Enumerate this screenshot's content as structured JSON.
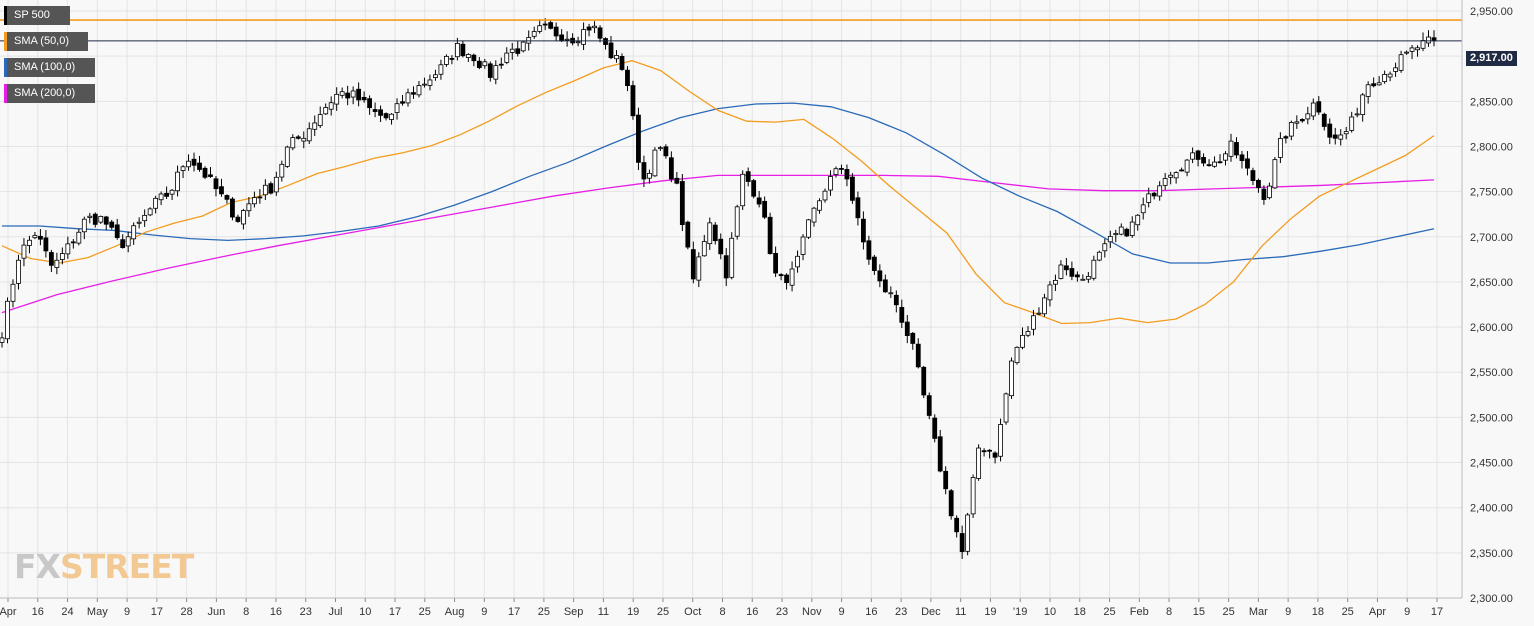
{
  "colors": {
    "background": "#f8f8f8",
    "grid": "#e4e4e4",
    "candle": "#000000",
    "sma50": "#f39c1f",
    "sma100": "#2a6ab8",
    "sma200": "#e61ee6",
    "resistance": "#f39c1f",
    "current_line": "#1f2a44"
  },
  "legend": [
    {
      "label": "SP 500",
      "color": "#000000"
    },
    {
      "label": "SMA (50,0)",
      "color": "#f39c1f"
    },
    {
      "label": "SMA (100,0)",
      "color": "#2a6ab8"
    },
    {
      "label": "SMA (200,0)",
      "color": "#e61ee6"
    }
  ],
  "price_tag": "2,917.00",
  "watermark": {
    "fx": "FX",
    "rest": "STREET"
  },
  "chart_data": {
    "type": "candlestick",
    "title": "SP 500",
    "xlabel": "",
    "ylabel": "",
    "ylim": [
      2300,
      2960
    ],
    "grid": true,
    "y_ticks": [
      2300,
      2350,
      2400,
      2450,
      2500,
      2550,
      2600,
      2650,
      2700,
      2750,
      2800,
      2850,
      2900,
      2950
    ],
    "y_tick_labels": [
      "2,300.00",
      "2,350.00",
      "2,400.00",
      "2,450.00",
      "2,500.00",
      "2,550.00",
      "2,600.00",
      "2,650.00",
      "2,700.00",
      "2,750.00",
      "2,800.00",
      "2,850.00",
      "2,900.00",
      "2,950.00"
    ],
    "x_ticks": [
      "Apr",
      "16",
      "24",
      "May",
      "9",
      "17",
      "28",
      "Jun",
      "8",
      "16",
      "23",
      "Jul",
      "10",
      "17",
      "25",
      "Aug",
      "9",
      "17",
      "25",
      "Sep",
      "11",
      "19",
      "25",
      "Oct",
      "8",
      "16",
      "23",
      "Nov",
      "9",
      "16",
      "23",
      "Dec",
      "11",
      "19",
      "'19",
      "10",
      "18",
      "25",
      "Feb",
      "8",
      "15",
      "25",
      "Mar",
      "9",
      "18",
      "25",
      "Apr",
      "9",
      "17"
    ],
    "resistance": 2940,
    "current_price": 2917,
    "price_keypoints": [
      2595,
      2680,
      2705,
      2665,
      2690,
      2720,
      2720,
      2690,
      2710,
      2735,
      2750,
      2790,
      2770,
      2745,
      2720,
      2745,
      2755,
      2800,
      2815,
      2840,
      2860,
      2855,
      2838,
      2830,
      2855,
      2870,
      2885,
      2910,
      2900,
      2880,
      2905,
      2910,
      2930,
      2925,
      2920,
      2935,
      2905,
      2885,
      2760,
      2800,
      2760,
      2650,
      2720,
      2660,
      2770,
      2740,
      2650,
      2660,
      2720,
      2760,
      2780,
      2700,
      2650,
      2630,
      2580,
      2500,
      2420,
      2350,
      2470,
      2460,
      2570,
      2600,
      2640,
      2670,
      2650,
      2675,
      2700,
      2710,
      2740,
      2770,
      2780,
      2790,
      2780,
      2800,
      2770,
      2745,
      2810,
      2830,
      2850,
      2805,
      2820,
      2870,
      2880,
      2895,
      2910,
      2917
    ],
    "sma50_keypoints": [
      2690,
      2676,
      2671,
      2677,
      2690,
      2705,
      2715,
      2723,
      2738,
      2745,
      2757,
      2770,
      2778,
      2787,
      2793,
      2801,
      2813,
      2828,
      2845,
      2860,
      2873,
      2887,
      2895,
      2884,
      2861,
      2840,
      2828,
      2827,
      2830,
      2809,
      2784,
      2756,
      2730,
      2704,
      2659,
      2627,
      2616,
      2604,
      2605,
      2610,
      2605,
      2609,
      2625,
      2650,
      2690,
      2720,
      2745,
      2760,
      2775,
      2790,
      2812
    ],
    "sma100_keypoints": [
      2712,
      2712,
      2709,
      2707,
      2702,
      2698,
      2696,
      2698,
      2701,
      2706,
      2712,
      2722,
      2735,
      2750,
      2767,
      2782,
      2800,
      2817,
      2832,
      2842,
      2847,
      2848,
      2844,
      2832,
      2815,
      2791,
      2765,
      2745,
      2728,
      2705,
      2681,
      2671,
      2671,
      2675,
      2678,
      2684,
      2691,
      2700,
      2709
    ],
    "sma200_keypoints": [
      2616,
      2636,
      2651,
      2665,
      2678,
      2690,
      2701,
      2712,
      2723,
      2734,
      2745,
      2754,
      2762,
      2768,
      2768,
      2768,
      2768,
      2767,
      2760,
      2753,
      2751,
      2751,
      2753,
      2755,
      2757,
      2760,
      2763
    ]
  }
}
